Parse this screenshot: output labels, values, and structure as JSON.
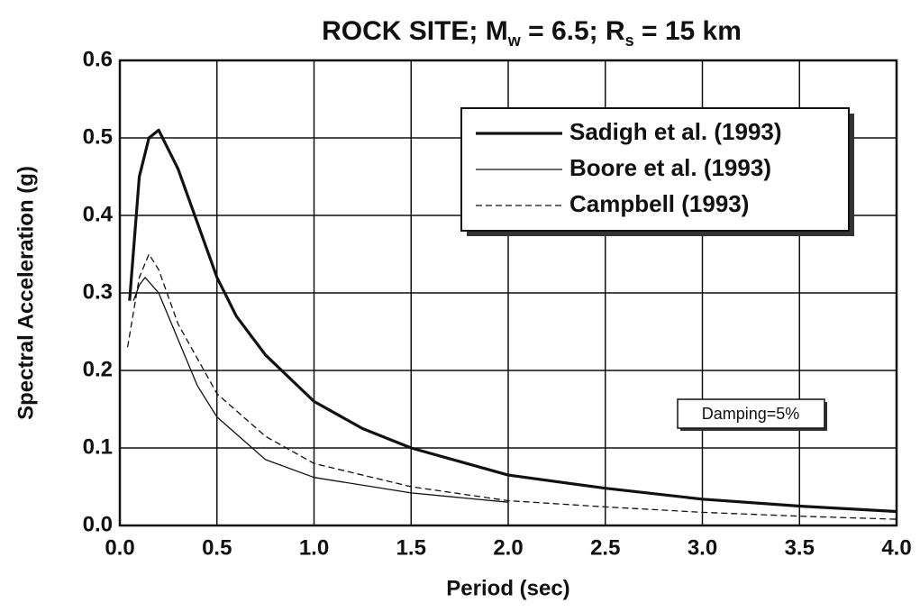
{
  "chart_data": {
    "type": "line",
    "title": [
      {
        "text": "ROCK SITE; M"
      },
      {
        "text": "w",
        "sub": true
      },
      {
        "text": " = 6.5; R"
      },
      {
        "text": "s",
        "sub": true
      },
      {
        "text": " = 15 km"
      }
    ],
    "x_label": "Period (sec)",
    "y_label": "Spectral Acceleration (g)",
    "xlim": [
      0,
      4
    ],
    "ylim": [
      0,
      0.6
    ],
    "xticks": [
      {
        "value": 0,
        "label": "0.0"
      },
      0.5,
      {
        "value": 1,
        "label": "1.0"
      },
      1.5,
      {
        "value": 2,
        "label": "2.0"
      },
      2.5,
      {
        "value": 3,
        "label": "3.0"
      },
      3.5,
      {
        "value": 4,
        "label": "4.0"
      }
    ],
    "yticks": [
      {
        "value": 0,
        "label": "0.0"
      },
      0.1,
      0.2,
      0.3,
      0.4,
      0.5,
      0.6
    ],
    "grid": true,
    "legend": "upper right",
    "annotation": "Damping=5%",
    "series": [
      {
        "name": "Sadigh et al. (1993)",
        "color": "#111111",
        "width": 3.2,
        "dash": false,
        "x": [
          0.05,
          0.1,
          0.15,
          0.2,
          0.3,
          0.4,
          0.5,
          0.6,
          0.75,
          1.0,
          1.25,
          1.5,
          2.0,
          2.5,
          3.0,
          3.5,
          4.0
        ],
        "values": [
          0.29,
          0.45,
          0.5,
          0.51,
          0.46,
          0.39,
          0.32,
          0.27,
          0.22,
          0.16,
          0.125,
          0.1,
          0.065,
          0.048,
          0.034,
          0.025,
          0.018
        ]
      },
      {
        "name": "Boore et al. (1993)",
        "color": "#111111",
        "width": 1.3,
        "dash": false,
        "x": [
          0.07,
          0.1,
          0.13,
          0.2,
          0.3,
          0.4,
          0.5,
          0.75,
          1.0,
          1.5,
          2.0
        ],
        "values": [
          0.29,
          0.31,
          0.32,
          0.3,
          0.24,
          0.18,
          0.14,
          0.085,
          0.062,
          0.042,
          0.03
        ]
      },
      {
        "name": "Campbell (1993)",
        "color": "#111111",
        "width": 1.3,
        "dash": true,
        "x": [
          0.04,
          0.1,
          0.15,
          0.2,
          0.3,
          0.5,
          0.75,
          1.0,
          1.5,
          2.0,
          2.5,
          3.0,
          3.5,
          4.0
        ],
        "values": [
          0.23,
          0.32,
          0.35,
          0.33,
          0.26,
          0.17,
          0.115,
          0.08,
          0.05,
          0.032,
          0.024,
          0.017,
          0.012,
          0.008
        ]
      }
    ]
  }
}
